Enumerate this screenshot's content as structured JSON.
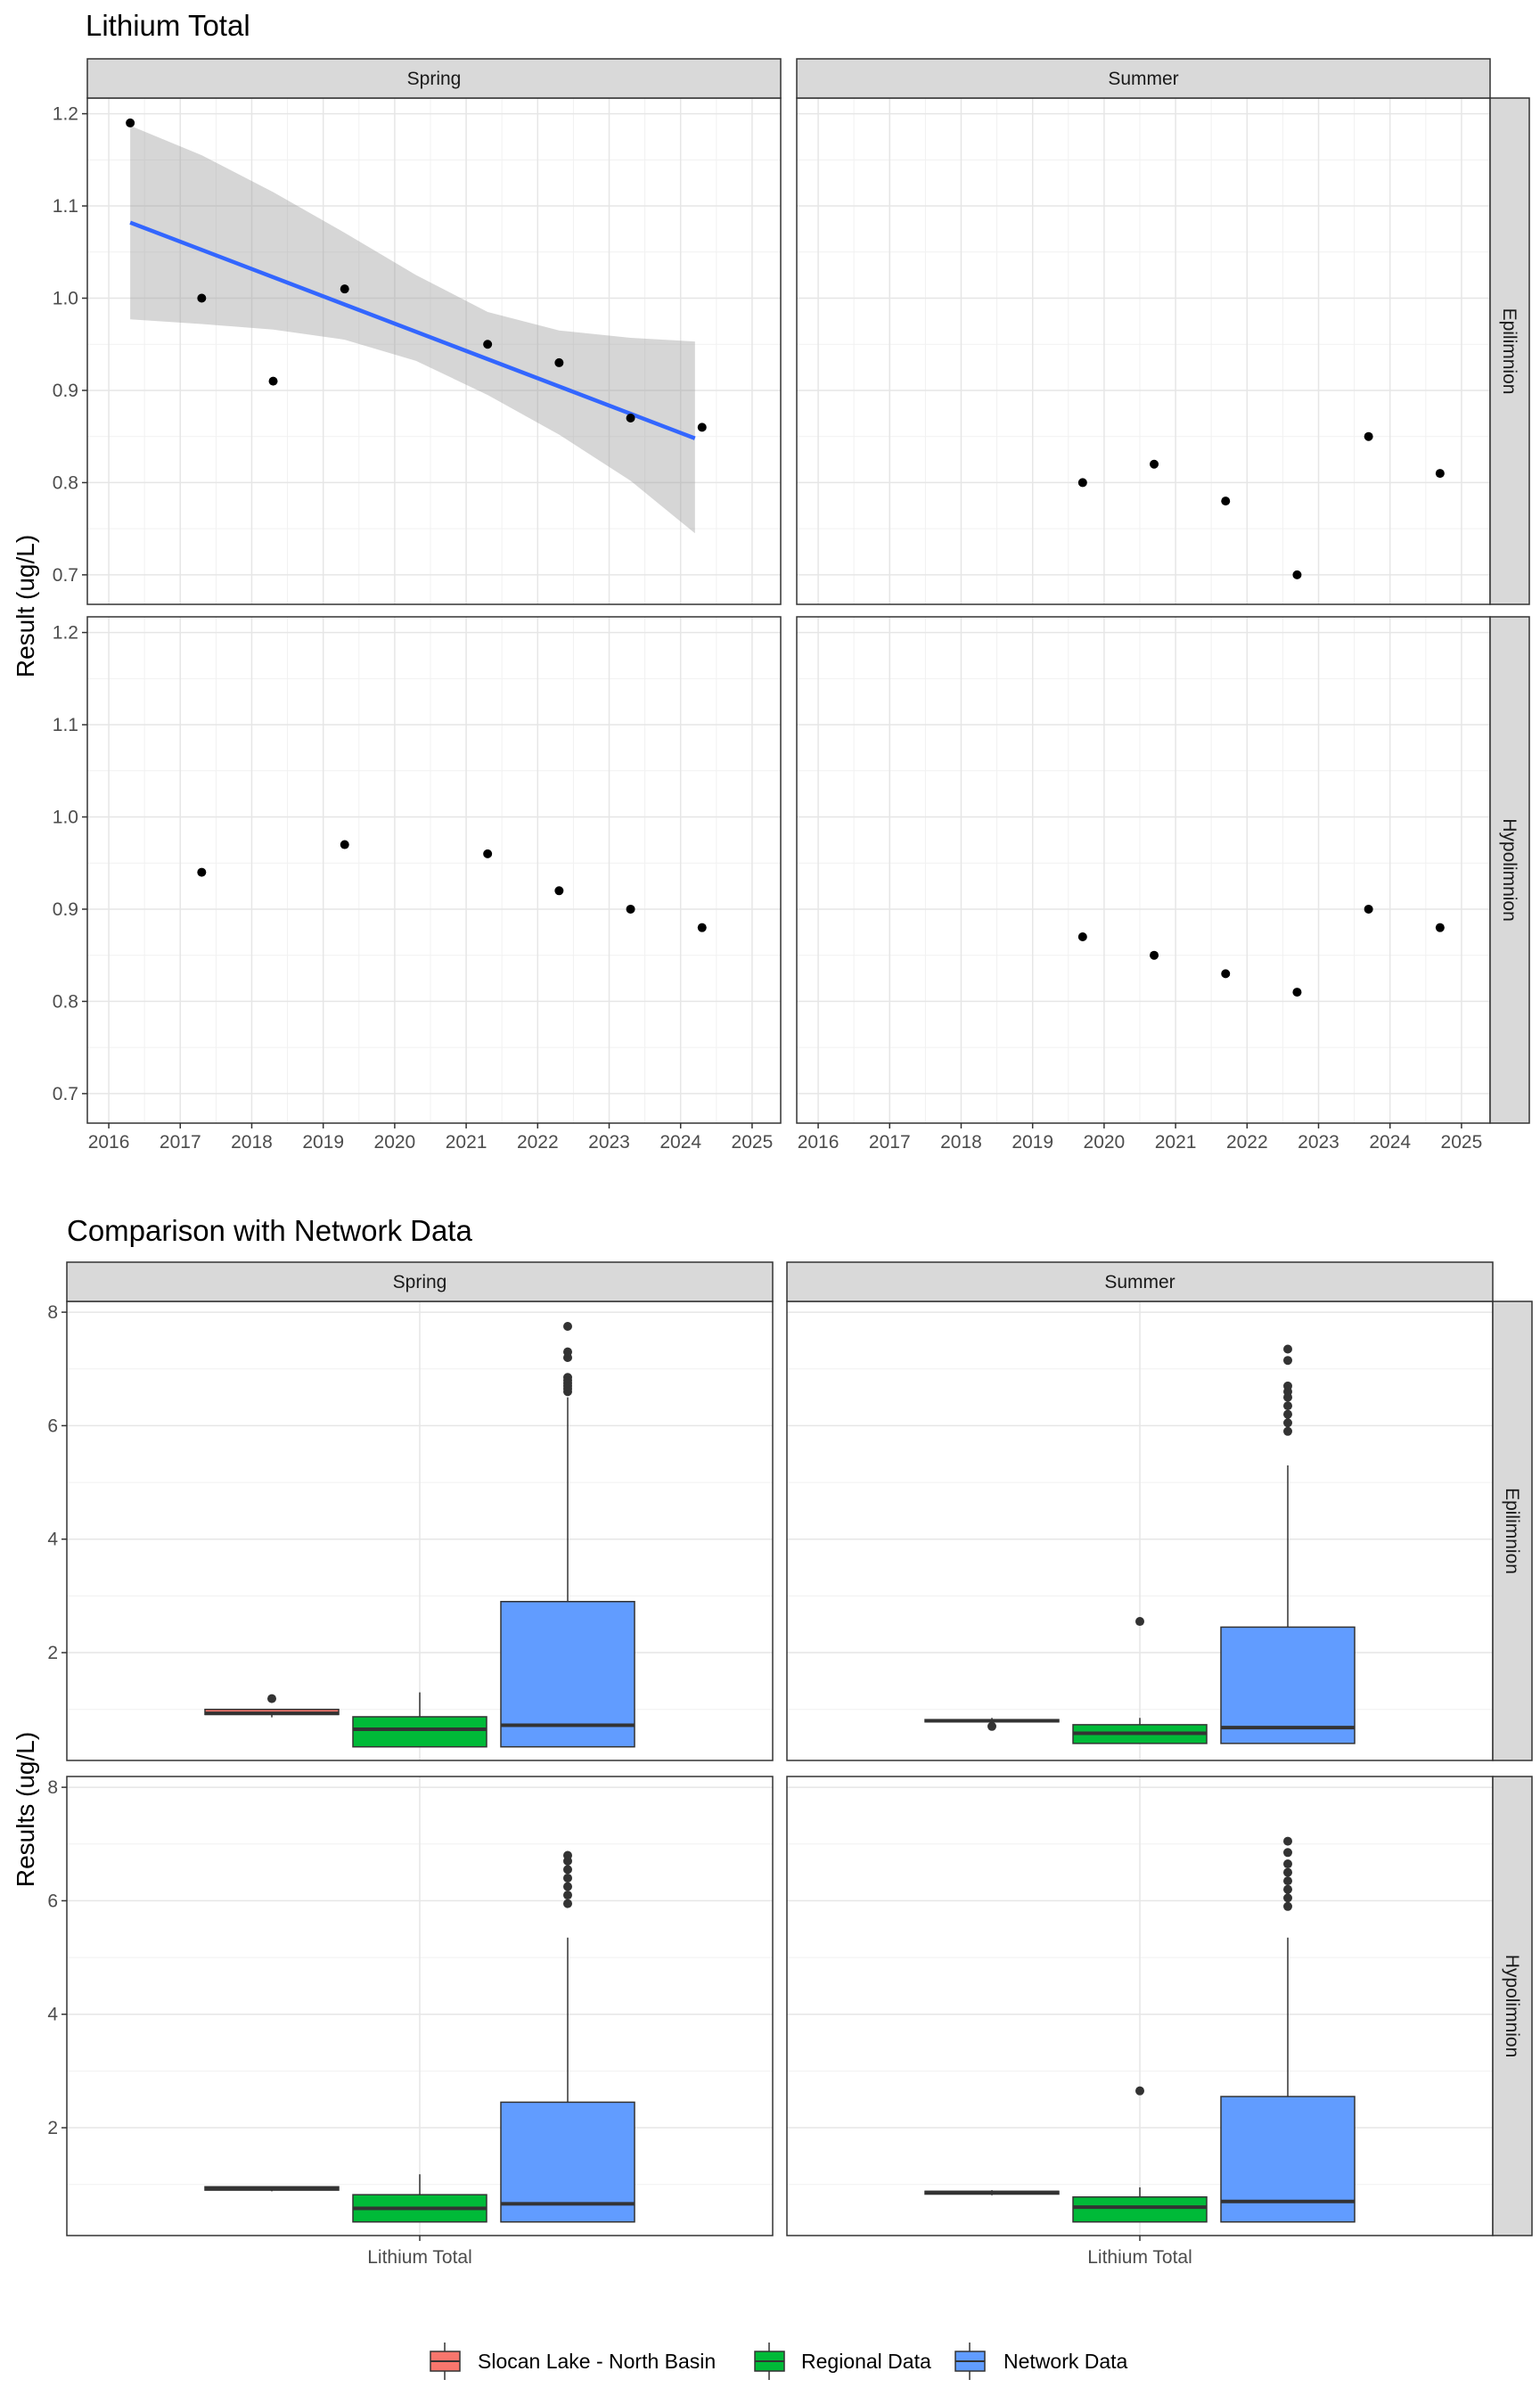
{
  "chart_data": [
    {
      "type": "scatter",
      "title": "Lithium Total",
      "ylabel": "Result (ug/L)",
      "xlabel": "",
      "xlim": [
        2015.7,
        2025.4
      ],
      "ylim": [
        0.668,
        1.217
      ],
      "x_ticks": [
        2016,
        2017,
        2018,
        2019,
        2020,
        2021,
        2022,
        2023,
        2024,
        2025
      ],
      "y_ticks": [
        0.7,
        0.8,
        0.9,
        1.0,
        1.1,
        1.2
      ],
      "y_tick_labels": [
        "0.7",
        "0.8",
        "0.9",
        "1.0",
        "1.1",
        "1.2"
      ],
      "columns": [
        "Spring",
        "Summer"
      ],
      "rows": [
        "Epilimnion",
        "Hypolimnion"
      ],
      "grid": true,
      "panels": [
        {
          "season": "Spring",
          "layer": "Epilimnion",
          "points": [
            {
              "x": 2016.3,
              "y": 1.19
            },
            {
              "x": 2017.3,
              "y": 1.0
            },
            {
              "x": 2018.3,
              "y": 0.91
            },
            {
              "x": 2019.3,
              "y": 1.01
            },
            {
              "x": 2021.3,
              "y": 0.95
            },
            {
              "x": 2022.3,
              "y": 0.93
            },
            {
              "x": 2023.3,
              "y": 0.87
            },
            {
              "x": 2024.3,
              "y": 0.86
            }
          ],
          "trend": {
            "x": [
              2016.3,
              2024.2
            ],
            "y": [
              1.082,
              0.848
            ]
          },
          "band": {
            "x": [
              2016.3,
              2017.3,
              2018.3,
              2019.3,
              2020.3,
              2021.3,
              2022.3,
              2023.3,
              2024.2
            ],
            "lower": [
              0.977,
              0.972,
              0.966,
              0.955,
              0.932,
              0.895,
              0.852,
              0.802,
              0.745
            ],
            "upper": [
              1.187,
              1.155,
              1.115,
              1.071,
              1.025,
              0.985,
              0.965,
              0.957,
              0.953
            ]
          }
        },
        {
          "season": "Summer",
          "layer": "Epilimnion",
          "points": [
            {
              "x": 2019.7,
              "y": 0.8
            },
            {
              "x": 2020.7,
              "y": 0.82
            },
            {
              "x": 2021.7,
              "y": 0.78
            },
            {
              "x": 2022.7,
              "y": 0.7
            },
            {
              "x": 2023.7,
              "y": 0.85
            },
            {
              "x": 2024.7,
              "y": 0.81
            }
          ]
        },
        {
          "season": "Spring",
          "layer": "Hypolimnion",
          "points": [
            {
              "x": 2017.3,
              "y": 0.94
            },
            {
              "x": 2019.3,
              "y": 0.97
            },
            {
              "x": 2021.3,
              "y": 0.96
            },
            {
              "x": 2022.3,
              "y": 0.92
            },
            {
              "x": 2023.3,
              "y": 0.9
            },
            {
              "x": 2024.3,
              "y": 0.88
            }
          ]
        },
        {
          "season": "Summer",
          "layer": "Hypolimnion",
          "points": [
            {
              "x": 2019.7,
              "y": 0.87
            },
            {
              "x": 2020.7,
              "y": 0.85
            },
            {
              "x": 2021.7,
              "y": 0.83
            },
            {
              "x": 2022.7,
              "y": 0.81
            },
            {
              "x": 2023.7,
              "y": 0.9
            },
            {
              "x": 2024.7,
              "y": 0.88
            }
          ]
        }
      ]
    },
    {
      "type": "box",
      "title": "Comparison with Network Data",
      "ylabel": "Results (ug/L)",
      "xlabel": "",
      "category": "Lithium Total",
      "ylim": [
        0.1,
        8.19
      ],
      "y_ticks": [
        2,
        4,
        6,
        8
      ],
      "y_tick_labels": [
        "2",
        "4",
        "6",
        "8"
      ],
      "columns": [
        "Spring",
        "Summer"
      ],
      "rows": [
        "Epilimnion",
        "Hypolimnion"
      ],
      "grid": true,
      "legend_position": "bottom",
      "groups": [
        {
          "name": "Slocan Lake - North Basin",
          "color": "#F8766D"
        },
        {
          "name": "Regional Data",
          "color": "#00BA38"
        },
        {
          "name": "Network Data",
          "color": "#619CFF"
        }
      ],
      "panels": [
        {
          "season": "Spring",
          "layer": "Epilimnion",
          "boxes": [
            {
              "group": "Slocan Lake - North Basin",
              "min": 0.86,
              "q1": 0.91,
              "median": 0.93,
              "q3": 1.0,
              "max": 1.01,
              "outliers": [
                1.19
              ]
            },
            {
              "group": "Regional Data",
              "min": 0.34,
              "q1": 0.34,
              "median": 0.65,
              "q3": 0.87,
              "max": 1.3,
              "outliers": []
            },
            {
              "group": "Network Data",
              "min": 0.34,
              "q1": 0.34,
              "median": 0.72,
              "q3": 2.9,
              "max": 6.5,
              "outliers": [
                6.6,
                6.65,
                6.7,
                6.75,
                6.8,
                6.85,
                7.2,
                7.3,
                7.75
              ]
            }
          ]
        },
        {
          "season": "Summer",
          "layer": "Epilimnion",
          "boxes": [
            {
              "group": "Slocan Lake - North Basin",
              "min": 0.78,
              "q1": 0.78,
              "median": 0.8,
              "q3": 0.82,
              "max": 0.85,
              "outliers": [
                0.7
              ]
            },
            {
              "group": "Regional Data",
              "min": 0.4,
              "q1": 0.4,
              "median": 0.58,
              "q3": 0.73,
              "max": 0.85,
              "outliers": [
                2.55
              ]
            },
            {
              "group": "Network Data",
              "min": 0.4,
              "q1": 0.4,
              "median": 0.68,
              "q3": 2.45,
              "max": 5.3,
              "outliers": [
                5.9,
                6.05,
                6.2,
                6.35,
                6.5,
                6.6,
                6.7,
                7.15,
                7.35
              ]
            }
          ]
        },
        {
          "season": "Spring",
          "layer": "Hypolimnion",
          "boxes": [
            {
              "group": "Slocan Lake - North Basin",
              "min": 0.88,
              "q1": 0.9,
              "median": 0.93,
              "q3": 0.96,
              "max": 0.97,
              "outliers": []
            },
            {
              "group": "Regional Data",
              "min": 0.34,
              "q1": 0.34,
              "median": 0.58,
              "q3": 0.82,
              "max": 1.18,
              "outliers": []
            },
            {
              "group": "Network Data",
              "min": 0.34,
              "q1": 0.34,
              "median": 0.66,
              "q3": 2.45,
              "max": 5.35,
              "outliers": [
                5.95,
                6.1,
                6.25,
                6.4,
                6.55,
                6.7,
                6.8
              ]
            }
          ]
        },
        {
          "season": "Summer",
          "layer": "Hypolimnion",
          "boxes": [
            {
              "group": "Slocan Lake - North Basin",
              "min": 0.81,
              "q1": 0.83,
              "median": 0.86,
              "q3": 0.88,
              "max": 0.9,
              "outliers": []
            },
            {
              "group": "Regional Data",
              "min": 0.34,
              "q1": 0.34,
              "median": 0.6,
              "q3": 0.78,
              "max": 0.95,
              "outliers": [
                2.65
              ]
            },
            {
              "group": "Network Data",
              "min": 0.34,
              "q1": 0.34,
              "median": 0.7,
              "q3": 2.55,
              "max": 5.35,
              "outliers": [
                5.9,
                6.05,
                6.2,
                6.35,
                6.5,
                6.65,
                6.85,
                7.05
              ]
            }
          ]
        }
      ]
    }
  ]
}
